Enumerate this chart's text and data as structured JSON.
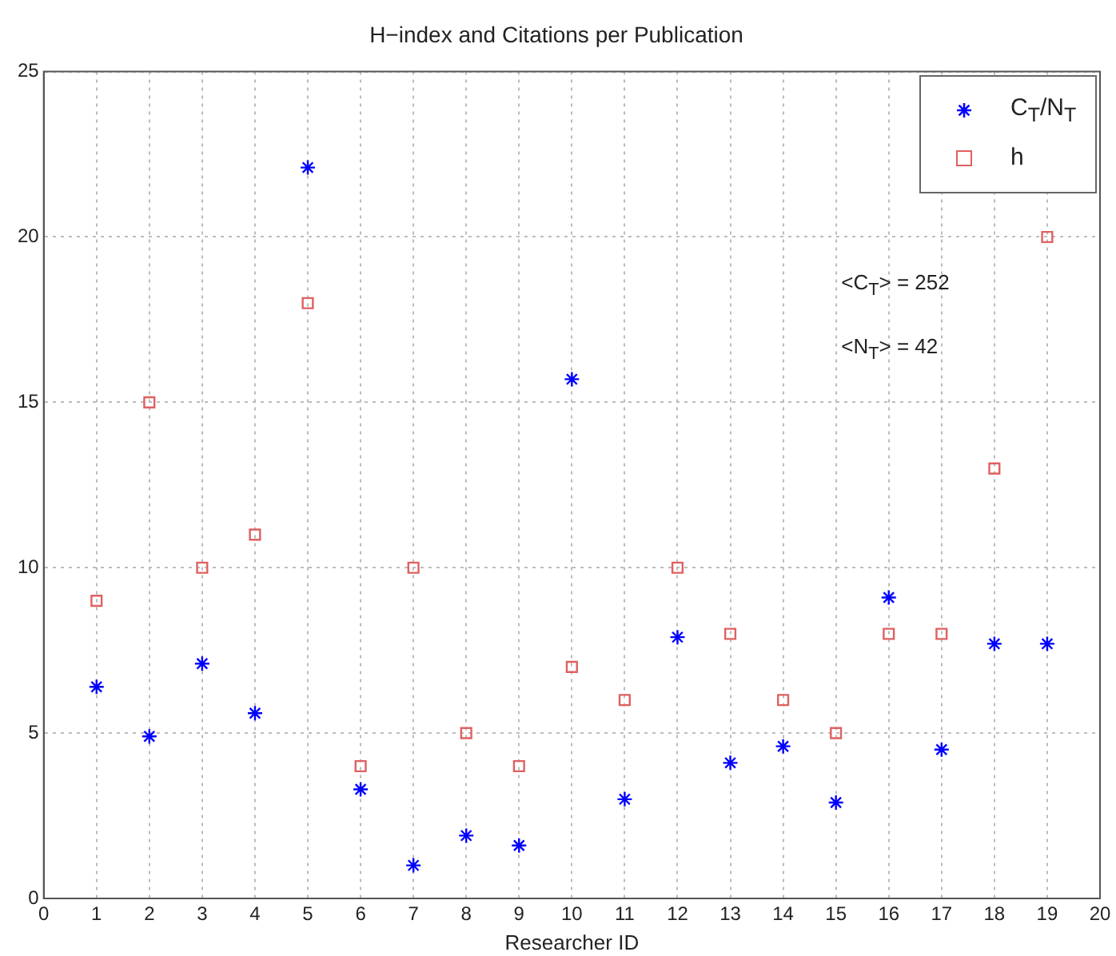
{
  "chart_data": {
    "type": "scatter",
    "title": "H−index and Citations per Publication",
    "xlabel": "Researcher ID",
    "x": [
      1,
      2,
      3,
      4,
      5,
      6,
      7,
      8,
      9,
      10,
      11,
      12,
      13,
      14,
      15,
      16,
      17,
      18,
      19
    ],
    "series": [
      {
        "name": "C$_{T}$/N$_{T}$",
        "color": "#0000ff",
        "marker": "cross",
        "values": [
          6.4,
          4.9,
          7.1,
          5.6,
          22.1,
          3.3,
          1.0,
          1.9,
          1.6,
          15.7,
          3.0,
          7.9,
          4.1,
          4.6,
          2.9,
          9.1,
          4.5,
          7.7,
          7.7
        ]
      },
      {
        "name": "h",
        "color": "#e06060",
        "marker": "square",
        "values": [
          9,
          15,
          10,
          11,
          18,
          4,
          10,
          5,
          4,
          7,
          6,
          10,
          8,
          6,
          5,
          8,
          8,
          13,
          20
        ]
      }
    ],
    "annotations": [
      "<C$_{T}$> = 252",
      "<N$_{T}$> = 42"
    ],
    "xlim": [
      0,
      20
    ],
    "xticks": [
      0,
      1,
      2,
      3,
      4,
      5,
      6,
      7,
      8,
      9,
      10,
      11,
      12,
      13,
      14,
      15,
      16,
      17,
      18,
      19,
      20
    ],
    "ylim": [
      0,
      25
    ],
    "yticks": [
      0,
      5,
      10,
      15,
      20,
      25
    ],
    "grid": true,
    "legend": "top right"
  }
}
